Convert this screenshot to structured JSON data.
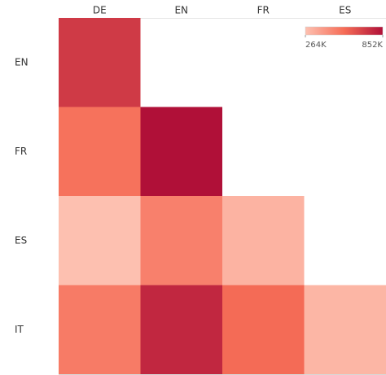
{
  "chart_data": {
    "type": "heatmap",
    "columns": [
      "DE",
      "EN",
      "FR",
      "ES"
    ],
    "rows": [
      "EN",
      "FR",
      "ES",
      "IT"
    ],
    "values": [
      [
        720000,
        null,
        null,
        null
      ],
      [
        540000,
        852000,
        null,
        null
      ],
      [
        264000,
        490000,
        310000,
        null
      ],
      [
        510000,
        780000,
        565000,
        300000
      ]
    ],
    "color_scale": [
      "#fdc0b0",
      "#f66d57",
      "#b01038"
    ],
    "clim": [
      264000,
      852000
    ],
    "cticks": [
      {
        "value": 264000,
        "label": "264K"
      },
      {
        "value": 852000,
        "label": "852K"
      }
    ]
  }
}
